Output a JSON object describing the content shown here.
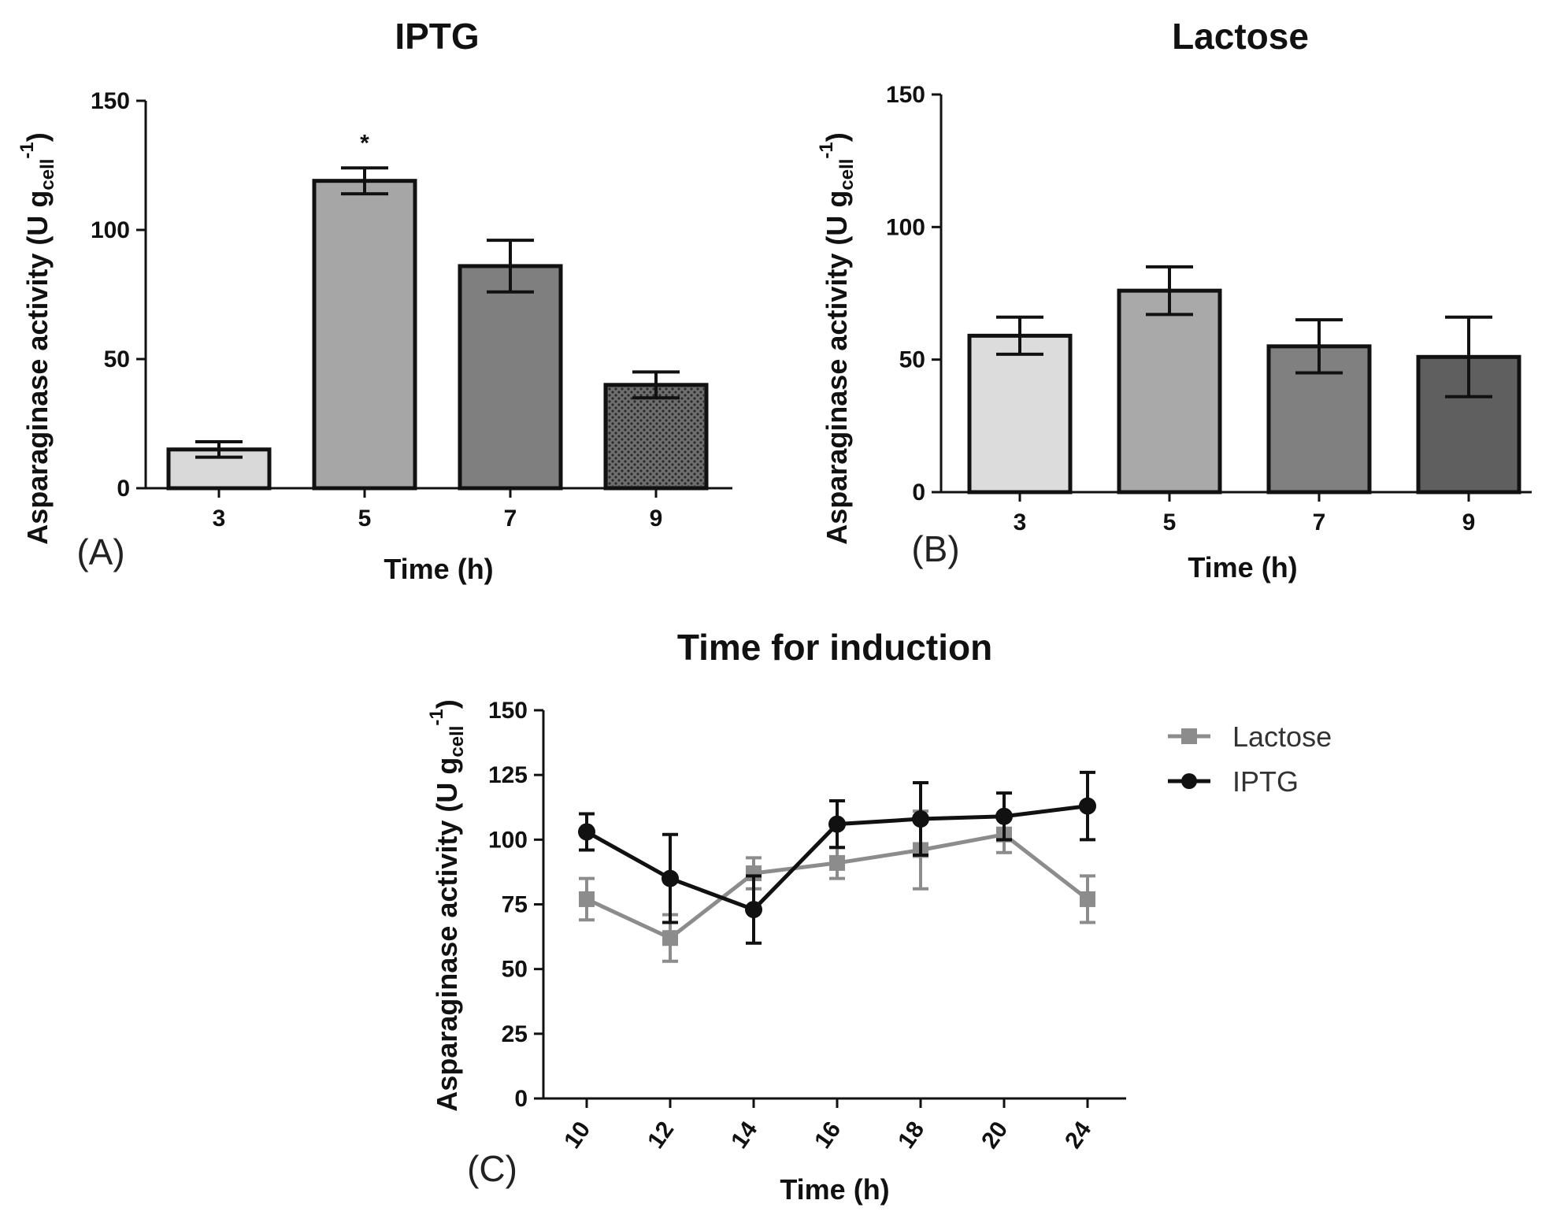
{
  "chart_data": [
    {
      "id": "A",
      "type": "bar",
      "title": "IPTG",
      "panel_label": "(A)",
      "xlabel": "Time (h)",
      "ylabel": {
        "main": "Asparaginase activity (U g",
        "sub": "cell",
        "sup": "-1",
        "close": ")"
      },
      "categories": [
        "3",
        "5",
        "7",
        "9"
      ],
      "values": [
        15,
        119,
        86,
        40
      ],
      "errors": [
        3,
        5,
        10,
        5
      ],
      "annotations": [
        "",
        "*",
        "",
        ""
      ],
      "fills": [
        "#d9d9d9",
        "#a6a6a6",
        "#7f7f7f",
        "#595959"
      ],
      "ylim": [
        0,
        150
      ],
      "yticks": [
        0,
        50,
        100,
        150
      ]
    },
    {
      "id": "B",
      "type": "bar",
      "title": "Lactose",
      "panel_label": "(B)",
      "xlabel": "Time (h)",
      "ylabel": {
        "main": "Asparaginase activity (U g",
        "sub": "cell",
        "sup": "-1",
        "close": ")"
      },
      "categories": [
        "3",
        "5",
        "7",
        "9"
      ],
      "values": [
        59,
        76,
        55,
        51
      ],
      "errors": [
        7,
        9,
        10,
        15
      ],
      "annotations": [
        "",
        "",
        "",
        ""
      ],
      "fills": [
        "#dcdcdc",
        "#a9a9a9",
        "#808080",
        "#5f5f5f"
      ],
      "ylim": [
        0,
        150
      ],
      "yticks": [
        0,
        50,
        100,
        150
      ]
    },
    {
      "id": "C",
      "type": "line",
      "title": "Time for induction",
      "panel_label": "(C)",
      "xlabel": "Time (h)",
      "ylabel": {
        "main": "Asparaginase activity (U g",
        "sub": "cell",
        "sup": "-1",
        "close": ")"
      },
      "categories": [
        "10",
        "12",
        "14",
        "16",
        "18",
        "20",
        "24"
      ],
      "ylim": [
        0,
        150
      ],
      "yticks": [
        0,
        25,
        50,
        75,
        100,
        125,
        150
      ],
      "series": [
        {
          "name": "Lactose",
          "color": "#8c8c8c",
          "marker": "square",
          "values": [
            77,
            62,
            87,
            91,
            96,
            102,
            77
          ],
          "errors": [
            8,
            9,
            6,
            6,
            15,
            7,
            9
          ]
        },
        {
          "name": "IPTG",
          "color": "#111111",
          "marker": "circle",
          "values": [
            103,
            85,
            73,
            106,
            108,
            109,
            113
          ],
          "errors": [
            7,
            17,
            13,
            9,
            14,
            9,
            13
          ]
        }
      ]
    }
  ]
}
